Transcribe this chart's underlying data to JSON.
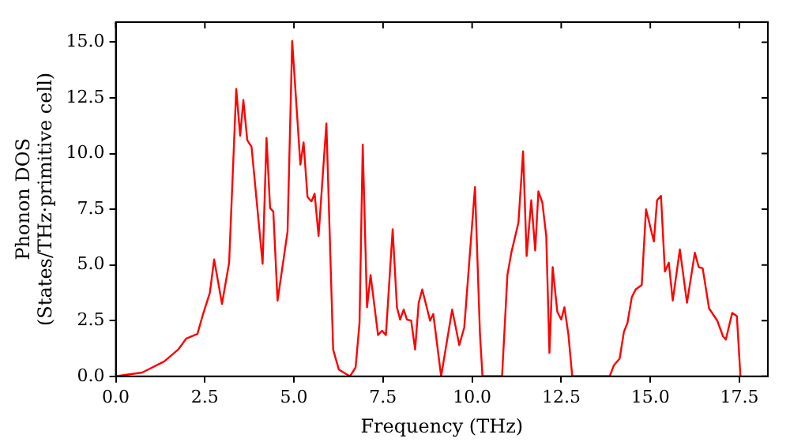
{
  "chart_data": {
    "type": "line",
    "xlabel": "Frequency (THz)",
    "ylabel": "Phonon DOS\n(States/THz·primitive cell)",
    "x": [
      0,
      0.74,
      1.36,
      1.75,
      1.98,
      2.29,
      2.45,
      2.64,
      2.76,
      2.98,
      3.18,
      3.38,
      3.49,
      3.58,
      3.69,
      3.81,
      4.12,
      4.23,
      4.33,
      4.42,
      4.54,
      4.82,
      4.95,
      5.18,
      5.27,
      5.38,
      5.49,
      5.58,
      5.69,
      5.91,
      6.1,
      6.26,
      6.57,
      6.73,
      6.84,
      6.93,
      7.05,
      7.15,
      7.36,
      7.47,
      7.58,
      7.77,
      7.89,
      7.98,
      8.08,
      8.17,
      8.29,
      8.4,
      8.5,
      8.6,
      8.82,
      8.91,
      9.13,
      9.44,
      9.64,
      9.78,
      10.08,
      10.22,
      10.29,
      10.84,
      10.99,
      11.1,
      11.3,
      11.43,
      11.53,
      11.66,
      11.77,
      11.86,
      11.97,
      12.08,
      12.17,
      12.26,
      12.39,
      12.5,
      12.59,
      12.7,
      12.81,
      13.86,
      13.98,
      14.14,
      14.26,
      14.36,
      14.48,
      14.59,
      14.76,
      14.88,
      15.1,
      15.19,
      15.3,
      15.41,
      15.52,
      15.63,
      15.83,
      16.03,
      16.25,
      16.36,
      16.47,
      16.65,
      16.88,
      17.04,
      17.12,
      17.3,
      17.43,
      17.53
    ],
    "series": [
      {
        "color": "#ff0000",
        "values": [
          0,
          0.17,
          0.67,
          1.2,
          1.7,
          1.9,
          2.8,
          3.75,
          5.25,
          3.25,
          5.1,
          12.9,
          10.8,
          12.4,
          10.6,
          10.3,
          5.05,
          10.7,
          7.55,
          7.4,
          3.4,
          6.5,
          15.05,
          9.5,
          10.5,
          8.05,
          7.85,
          8.2,
          6.3,
          11.35,
          1.2,
          0.3,
          0,
          0.4,
          2.4,
          10.4,
          3.1,
          4.55,
          1.85,
          2.05,
          1.85,
          6.6,
          3.1,
          2.55,
          3.0,
          2.55,
          2.5,
          1.2,
          3.3,
          3.9,
          2.5,
          2.8,
          0,
          3.0,
          1.4,
          2.2,
          8.5,
          1.9,
          0,
          0,
          4.55,
          5.55,
          6.9,
          10.1,
          5.4,
          7.9,
          5.65,
          8.3,
          7.8,
          6.3,
          1.05,
          4.9,
          2.9,
          2.55,
          3.1,
          1.9,
          0,
          0,
          0.5,
          0.8,
          2.0,
          2.4,
          3.55,
          3.9,
          4.1,
          7.5,
          6.05,
          7.9,
          8.1,
          4.7,
          5.1,
          3.4,
          5.7,
          3.3,
          5.55,
          4.9,
          4.85,
          3.05,
          2.5,
          1.8,
          1.65,
          2.85,
          2.7,
          0
        ]
      }
    ],
    "xlim": [
      0,
      18.3
    ],
    "ylim": [
      0,
      15.9
    ],
    "xticks": [
      {
        "value": 0,
        "label": "0.0"
      },
      {
        "value": 2.5,
        "label": "2.5"
      },
      {
        "value": 5,
        "label": "5.0"
      },
      {
        "value": 7.5,
        "label": "7.5"
      },
      {
        "value": 10,
        "label": "10.0"
      },
      {
        "value": 12.5,
        "label": "12.5"
      },
      {
        "value": 15,
        "label": "15.0"
      },
      {
        "value": 17.5,
        "label": "17.5"
      }
    ],
    "yticks": [
      {
        "value": 0,
        "label": "0.0"
      },
      {
        "value": 2.5,
        "label": "2.5"
      },
      {
        "value": 5,
        "label": "5.0"
      },
      {
        "value": 7.5,
        "label": "7.5"
      },
      {
        "value": 10,
        "label": "10.0"
      },
      {
        "value": 12.5,
        "label": "12.5"
      },
      {
        "value": 15,
        "label": "15.0"
      }
    ],
    "grid": false,
    "legend": false,
    "marker": "none",
    "line_style": "solid"
  }
}
